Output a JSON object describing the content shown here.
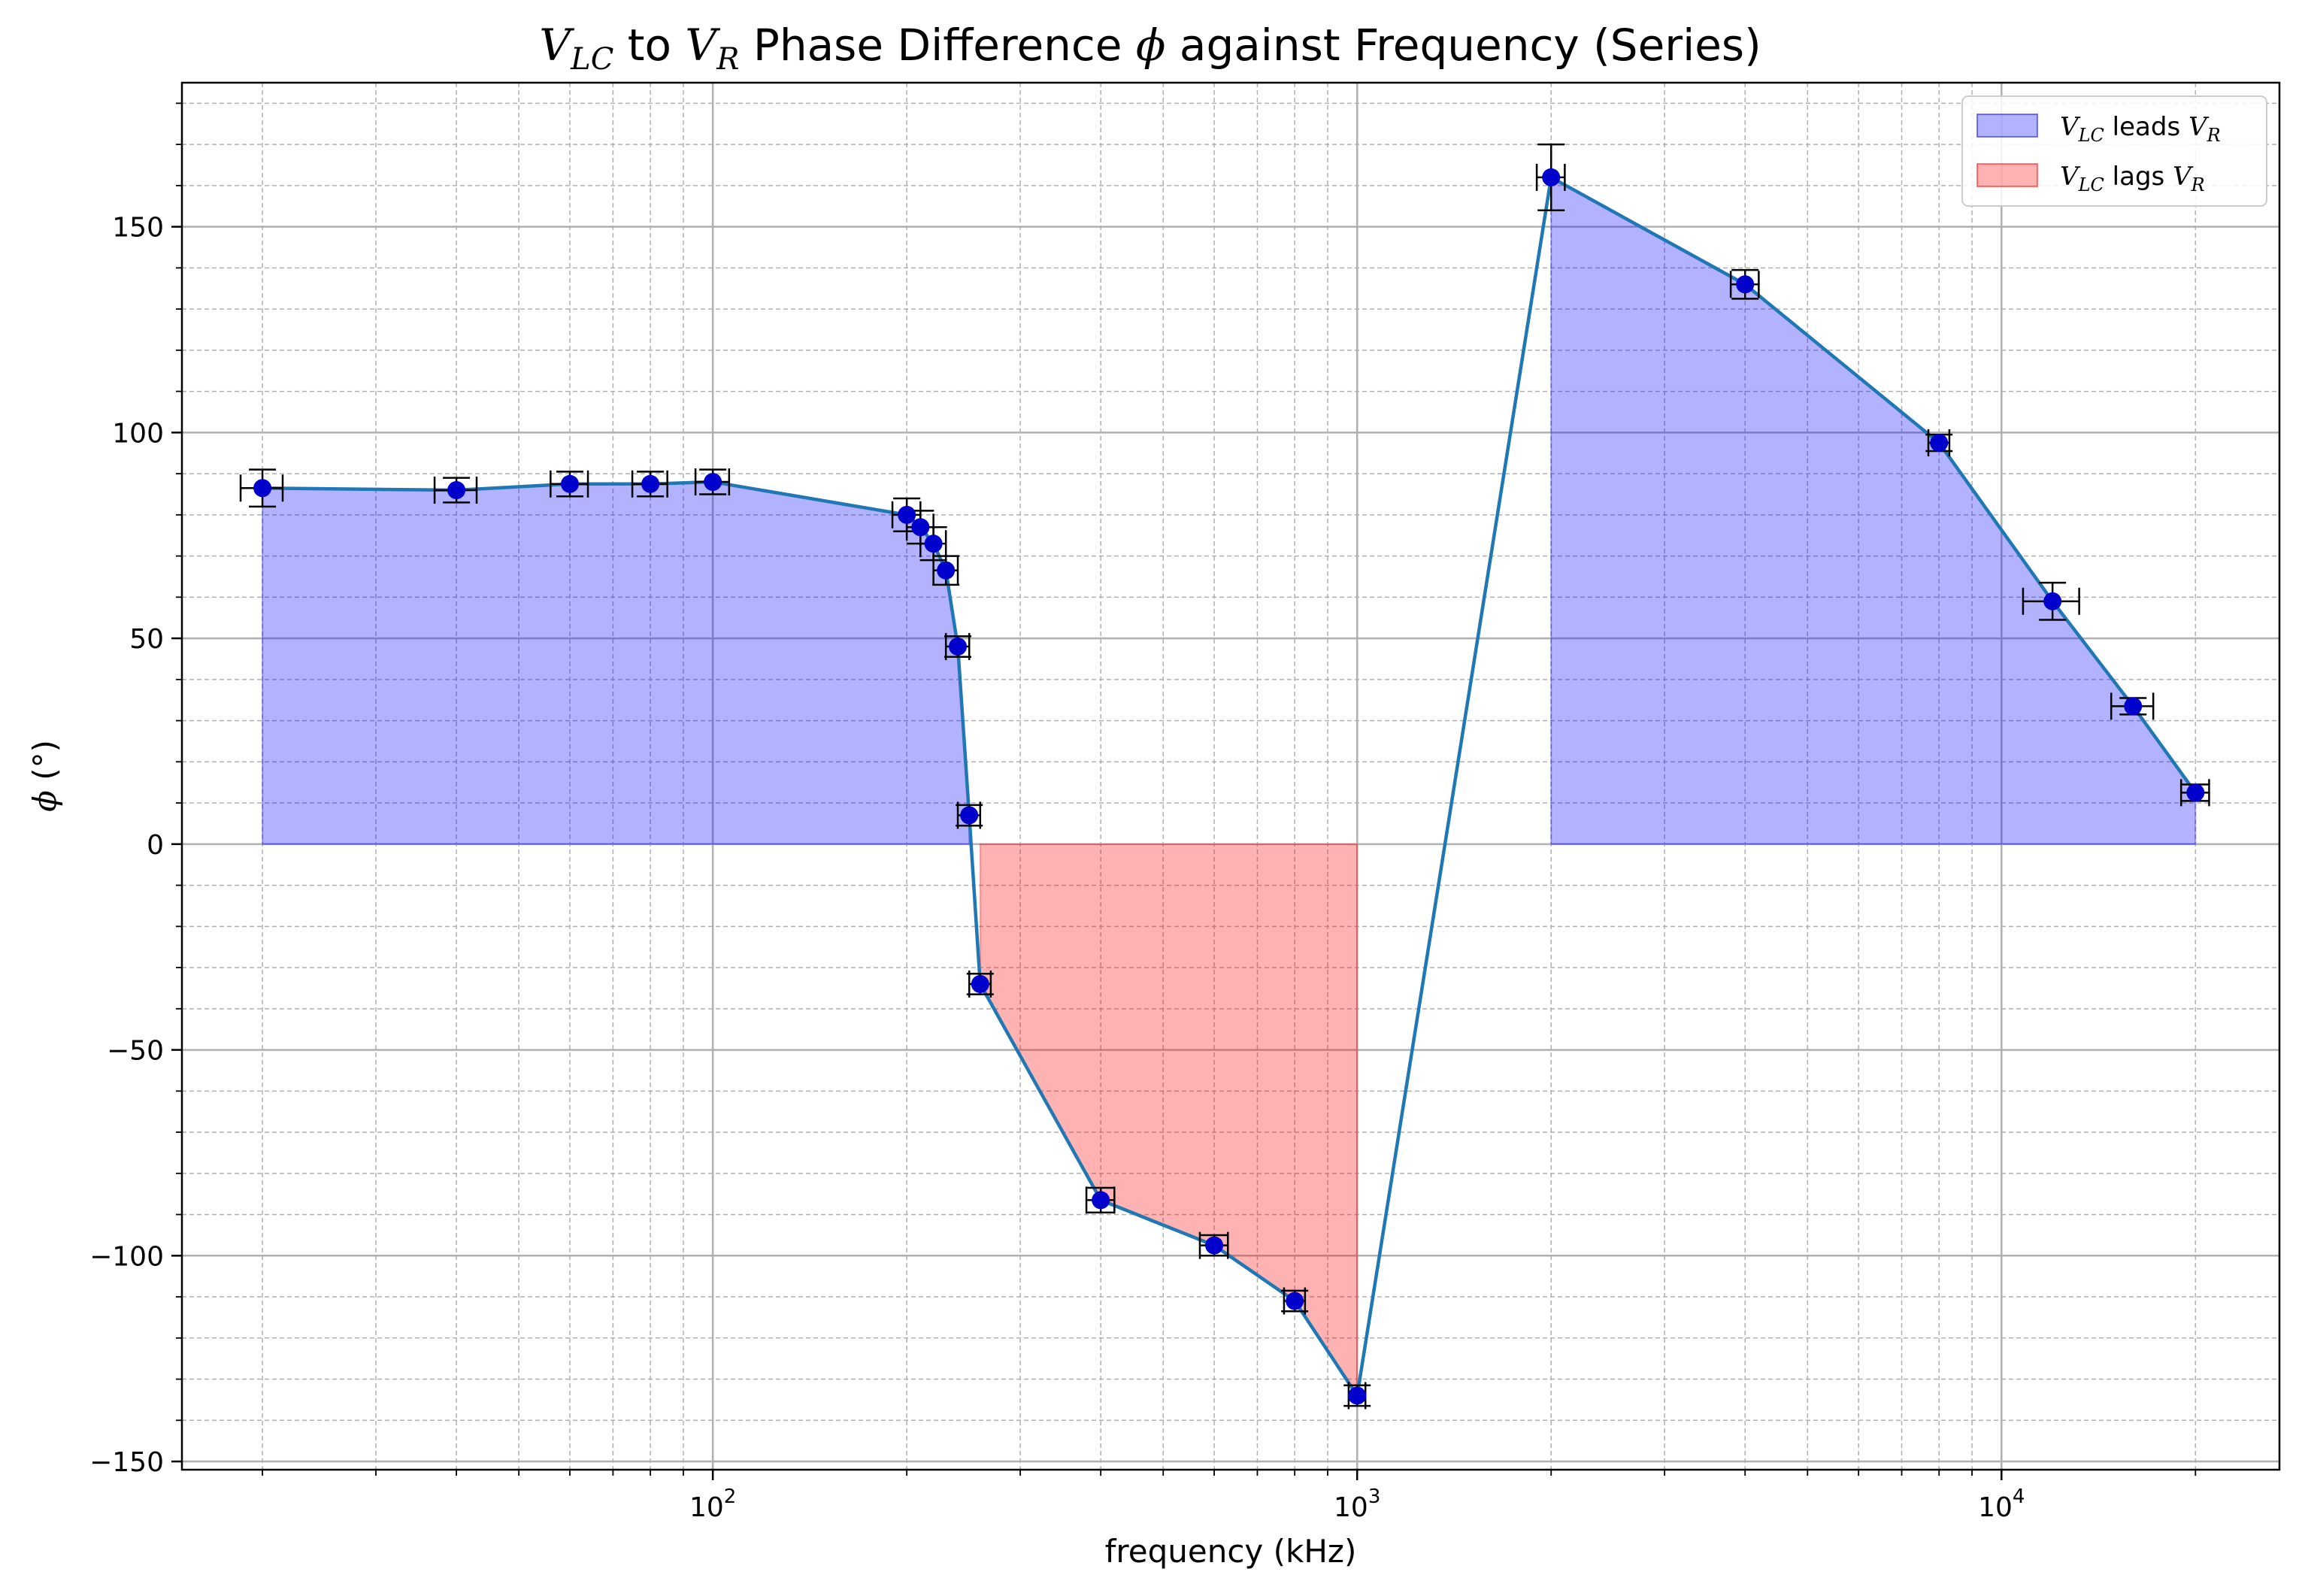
{
  "chart_data": {
    "type": "line",
    "title": {
      "pre": "V",
      "pre_sub": "LC",
      "mid": " to ",
      "mid_var": "V",
      "mid_sub": "R",
      "post": " Phase Difference ",
      "greek": "ϕ",
      "tail": " against Frequency (Series)"
    },
    "xlabel": "frequency (kHz)",
    "ylabel": {
      "greek": "ϕ",
      "unit": " (°)"
    },
    "xscale": "log",
    "xlim": [
      15,
      27000
    ],
    "ylim": [
      -152,
      185
    ],
    "x_tick_labels": [
      {
        "value": 100,
        "base": "10",
        "exp": "2"
      },
      {
        "value": 1000,
        "base": "10",
        "exp": "3"
      },
      {
        "value": 10000,
        "base": "10",
        "exp": "4"
      }
    ],
    "y_ticks": [
      -150,
      -100,
      -50,
      0,
      50,
      100,
      150
    ],
    "y_tick_labels": [
      "−150",
      "−100",
      "−50",
      "0",
      "50",
      "100",
      "150"
    ],
    "y_minor_step": 10,
    "grid": true,
    "legend": {
      "placement": "top-right",
      "entries": [
        {
          "var": "V",
          "sub": "LC",
          "text": " leads ",
          "var2": "V",
          "sub2": "R",
          "color": "#0000ff"
        },
        {
          "var": "V",
          "sub": "LC",
          "text": " lags ",
          "var2": "V",
          "sub2": "R",
          "color": "#ff0000"
        }
      ]
    },
    "colors": {
      "line": "#1f77b4",
      "marker": "#0000cc",
      "errorbar": "#000000",
      "lead_fill": "#0000ff",
      "lag_fill": "#ff0000",
      "grid": "#b0b0b0"
    },
    "series": [
      {
        "x": [
          20,
          40,
          60,
          80,
          100,
          200,
          210,
          220,
          230,
          240,
          250,
          260,
          400,
          600,
          800,
          1000,
          2000,
          4000,
          8000,
          12000,
          16000,
          20000
        ],
        "y": [
          86.5,
          86,
          87.5,
          87.5,
          88,
          80,
          77,
          73,
          66.5,
          48,
          7,
          -34,
          -86.5,
          -97.5,
          -111,
          -134,
          162,
          136,
          97.5,
          59,
          33.5,
          12.5
        ],
        "yerr": [
          4.5,
          3,
          3,
          3,
          3,
          4,
          4,
          4,
          3.5,
          2.5,
          2.5,
          2.5,
          3,
          2.5,
          2.5,
          2.5,
          8,
          3.5,
          2,
          4.5,
          2,
          2
        ],
        "xerr": [
          1.5,
          3,
          4,
          5,
          6,
          10,
          10,
          10,
          10,
          10,
          10,
          10,
          20,
          30,
          30,
          30,
          100,
          200,
          300,
          1200,
          1200,
          1000
        ]
      }
    ],
    "lead_regions": [
      [
        0,
        10
      ],
      [
        16,
        21
      ]
    ],
    "lag_regions": [
      [
        11,
        15
      ]
    ]
  }
}
